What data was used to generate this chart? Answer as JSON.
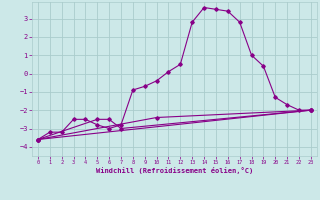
{
  "title": "",
  "xlabel": "Windchill (Refroidissement éolien,°C)",
  "ylabel": "",
  "bg_color": "#cce8e8",
  "grid_color": "#aacccc",
  "line_color": "#880088",
  "xlim": [
    -0.5,
    23.5
  ],
  "ylim": [
    -4.5,
    3.9
  ],
  "yticks": [
    -4,
    -3,
    -2,
    -1,
    0,
    1,
    2,
    3
  ],
  "xticks": [
    0,
    1,
    2,
    3,
    4,
    5,
    6,
    7,
    8,
    9,
    10,
    11,
    12,
    13,
    14,
    15,
    16,
    17,
    18,
    19,
    20,
    21,
    22,
    23
  ],
  "series1_x": [
    0,
    1,
    2,
    3,
    4,
    5,
    6,
    7,
    8,
    9,
    10,
    11,
    12,
    13,
    14,
    15,
    16,
    17,
    18,
    19,
    20,
    21,
    22,
    23
  ],
  "series1_y": [
    -3.6,
    -3.2,
    -3.2,
    -2.5,
    -2.5,
    -2.8,
    -3.0,
    -2.8,
    -0.9,
    -0.7,
    -0.4,
    0.1,
    0.5,
    2.8,
    3.6,
    3.5,
    3.4,
    2.8,
    1.0,
    0.4,
    -1.3,
    -1.7,
    -2.0,
    -2.0
  ],
  "series2_x": [
    0,
    23
  ],
  "series2_y": [
    -3.6,
    -2.0
  ],
  "series3_x": [
    0,
    5,
    6,
    7,
    23
  ],
  "series3_y": [
    -3.6,
    -2.5,
    -2.5,
    -3.0,
    -2.0
  ],
  "series4_x": [
    0,
    10,
    23
  ],
  "series4_y": [
    -3.6,
    -2.4,
    -2.0
  ]
}
